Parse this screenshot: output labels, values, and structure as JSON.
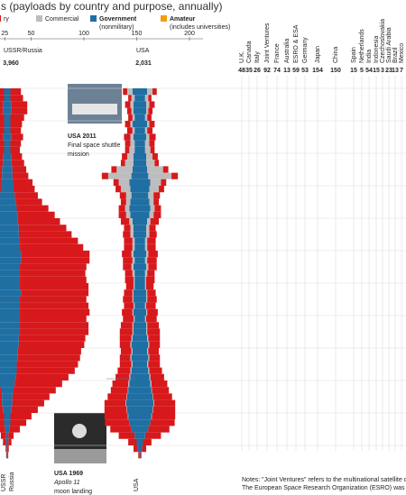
{
  "chart_data": {
    "type": "mirrored-stack",
    "title": "s (payloads by country and purpose, annually)",
    "legend": [
      {
        "label": "ry",
        "color": "#d7191c"
      },
      {
        "label": "Commercial",
        "color": "#bdbdbd"
      },
      {
        "label": "Government",
        "sub": "(nonmilitary)",
        "color": "#1f6fa3"
      },
      {
        "label": "Amateur",
        "sub": "(includes universities)",
        "color": "#f39c12"
      }
    ],
    "xlim": [
      0,
      200
    ],
    "xticks": [
      25,
      50,
      100,
      150,
      200
    ],
    "countries": [
      {
        "name": "USSR/Russia",
        "total": "3,960",
        "bottom": [
          "USSR",
          "Russia"
        ],
        "series": [
          {
            "name": "Government",
            "color": "#1f6fa3",
            "values": [
              6,
              6,
              8,
              8,
              6,
              6,
              6,
              8,
              6,
              6,
              8,
              8,
              10,
              10,
              12,
              12,
              14,
              16,
              18,
              20,
              20,
              22,
              22,
              24,
              24,
              26,
              26,
              24,
              24,
              24,
              24,
              26,
              24,
              24,
              24,
              24,
              24,
              24,
              22,
              22,
              20,
              20,
              18,
              18,
              16,
              14,
              12,
              10,
              10,
              8,
              6,
              6,
              4,
              2,
              2,
              1,
              1
            ]
          },
          {
            "name": "Military",
            "color": "#d7191c",
            "values": [
              20,
              24,
              30,
              30,
              26,
              22,
              20,
              22,
              20,
              18,
              20,
              24,
              26,
              30,
              36,
              40,
              44,
              50,
              60,
              70,
              80,
              90,
              100,
              110,
              120,
              130,
              130,
              126,
              124,
              126,
              130,
              128,
              126,
              130,
              132,
              126,
              130,
              130,
              126,
              124,
              120,
              118,
              116,
              110,
              100,
              90,
              80,
              70,
              60,
              50,
              40,
              30,
              20,
              10,
              6,
              2,
              1
            ]
          }
        ]
      },
      {
        "name": "USA",
        "total": "2,031",
        "bottom": [
          "USA"
        ],
        "series": [
          {
            "name": "Government",
            "color": "#1f6fa3",
            "values": [
              14,
              10,
              12,
              12,
              10,
              14,
              10,
              12,
              10,
              10,
              12,
              12,
              14,
              16,
              20,
              18,
              16,
              18,
              20,
              18,
              14,
              12,
              12,
              10,
              10,
              12,
              10,
              12,
              10,
              10,
              10,
              12,
              12,
              10,
              12,
              10,
              12,
              12,
              14,
              16,
              14,
              16,
              14,
              16,
              18,
              20,
              22,
              24,
              26,
              24,
              22,
              20,
              16,
              10,
              6,
              4,
              1
            ]
          },
          {
            "name": "Commercial",
            "color": "#bdbdbd",
            "values": [
              10,
              6,
              6,
              4,
              4,
              4,
              4,
              6,
              8,
              10,
              12,
              16,
              30,
              44,
              20,
              18,
              10,
              8,
              8,
              8,
              6,
              6,
              6,
              4,
              4,
              4,
              4,
              4,
              4,
              2,
              2,
              2,
              2,
              2,
              2,
              2,
              2,
              2,
              2,
              2,
              2,
              2,
              2,
              2,
              2,
              2,
              1,
              1,
              1,
              1,
              1,
              0,
              0,
              0,
              0,
              0,
              0
            ]
          },
          {
            "name": "Military",
            "color": "#d7191c",
            "values": [
              8,
              6,
              10,
              8,
              8,
              10,
              10,
              12,
              10,
              8,
              10,
              8,
              10,
              12,
              10,
              10,
              12,
              10,
              12,
              14,
              16,
              12,
              14,
              16,
              16,
              18,
              18,
              16,
              14,
              16,
              14,
              16,
              18,
              18,
              20,
              20,
              22,
              24,
              22,
              20,
              20,
              20,
              22,
              24,
              26,
              30,
              32,
              36,
              40,
              42,
              44,
              46,
              40,
              30,
              16,
              8,
              2
            ]
          }
        ]
      }
    ],
    "others": [
      {
        "name": "U.K.",
        "total": 48
      },
      {
        "name": "Canada",
        "total": 35
      },
      {
        "name": "Italy",
        "total": 26
      },
      {
        "name": "Joint Ventures",
        "total": 92
      },
      {
        "name": "France",
        "total": 74
      },
      {
        "name": "Australia",
        "total": 13
      },
      {
        "name": "ESRO & ESA",
        "total": 59
      },
      {
        "name": "Germany",
        "total": 53
      },
      {
        "name": "Japan",
        "total": 154
      },
      {
        "name": "China",
        "total": 150
      },
      {
        "name": "Spain",
        "total": 15
      },
      {
        "name": "Netherlands",
        "total": 5
      },
      {
        "name": "India",
        "total": 54
      },
      {
        "name": "Indonesia",
        "total": 15
      },
      {
        "name": "Czechoslovakia",
        "total": 3
      },
      {
        "name": "Saudi Arabia",
        "total": 23
      },
      {
        "name": "Brazil",
        "total": 13
      },
      {
        "name": "Mexico",
        "total": 7
      }
    ],
    "annotations": [
      {
        "title": "USA 2011",
        "lines": [
          "Final space shuttle",
          "mission"
        ]
      },
      {
        "title": "USA 1969",
        "lines": [
          "Apollo 11",
          "moon landing"
        ]
      }
    ],
    "notes": [
      "Notes: \"Joint Ventures\" refers to the multinational satellite consortia INTELSAT, INM",
      "The European Space Research Organization (ESRO) was a forerunner to the Europe"
    ]
  }
}
